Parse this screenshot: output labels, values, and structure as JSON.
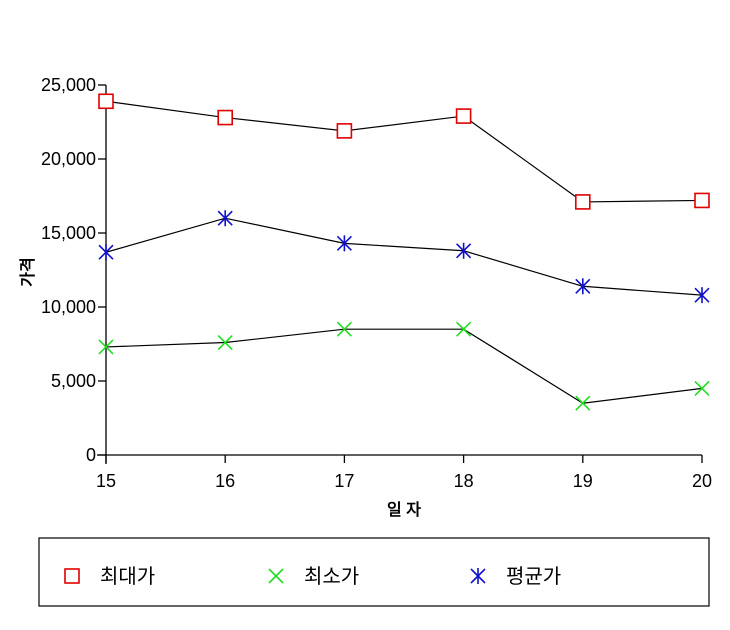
{
  "chart_data": {
    "type": "line",
    "title": "",
    "xlabel": "일 자",
    "ylabel": "가격",
    "x": [
      15,
      16,
      17,
      18,
      19,
      20
    ],
    "x_tick_labels": [
      "15",
      "16",
      "17",
      "18",
      "19",
      "20"
    ],
    "y_ticks": [
      0,
      5000,
      10000,
      15000,
      20000,
      25000
    ],
    "y_tick_labels": [
      "0",
      "5,000",
      "10,000",
      "15,000",
      "20,000",
      "25,000"
    ],
    "ylim": [
      0,
      25000
    ],
    "xlim": [
      15,
      20
    ],
    "grid": false,
    "legend_position": "bottom",
    "series": [
      {
        "name": "최대가",
        "marker": "square",
        "color": "#e00000",
        "values": [
          23900,
          22800,
          21900,
          22900,
          17100,
          17200
        ]
      },
      {
        "name": "최소가",
        "marker": "x",
        "color": "#22dd22",
        "values": [
          7300,
          7600,
          8500,
          8500,
          3500,
          4500
        ]
      },
      {
        "name": "평균가",
        "marker": "asterisk",
        "color": "#1010cc",
        "values": [
          13700,
          16000,
          14300,
          13800,
          11400,
          10800
        ]
      }
    ],
    "line_color": "#000000"
  }
}
